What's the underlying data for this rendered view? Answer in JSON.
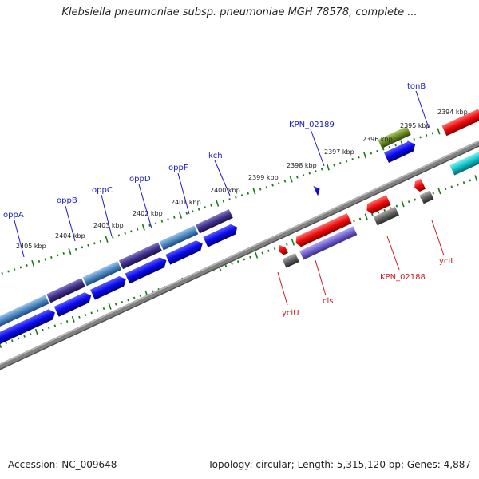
{
  "title": "Klebsiella pneumoniae subsp. pneumoniae MGH 78578, complete ...",
  "footer": {
    "accession": "Accession: NC_009648",
    "stats": "Topology: circular; Length: 5,315,120 bp; Genes: 4,887"
  },
  "scale_labels": [
    "2405 kbp",
    "2404 kbp",
    "2403 kbp",
    "2402 kbp",
    "2401 kbp",
    "2400 kbp",
    "2399 kbp",
    "2398 kbp",
    "2397 kbp",
    "2396 kbp",
    "2395 kbp",
    "2394 kbp"
  ],
  "gene_labels_top": [
    "oppA",
    "oppB",
    "oppC",
    "oppD",
    "oppF",
    "kch",
    "KPN_02189",
    "tonB"
  ],
  "gene_labels_bottom": [
    "yciU",
    "cls",
    "KPN_02188",
    "yciI"
  ],
  "colors": {
    "cds_forward": "#0a0aee",
    "cds_reverse": "#ee0a0a",
    "opp_operon": "#4a86c0",
    "kch": "#40308a",
    "cls_feature": "#7060d0",
    "grey_feature": "#606060",
    "tonB_feature": "#6a8a20",
    "backbone": "#808080",
    "ticks": "#1a7a1a",
    "label_top": "#1a1acc",
    "label_bottom": "#cc1a1a"
  }
}
